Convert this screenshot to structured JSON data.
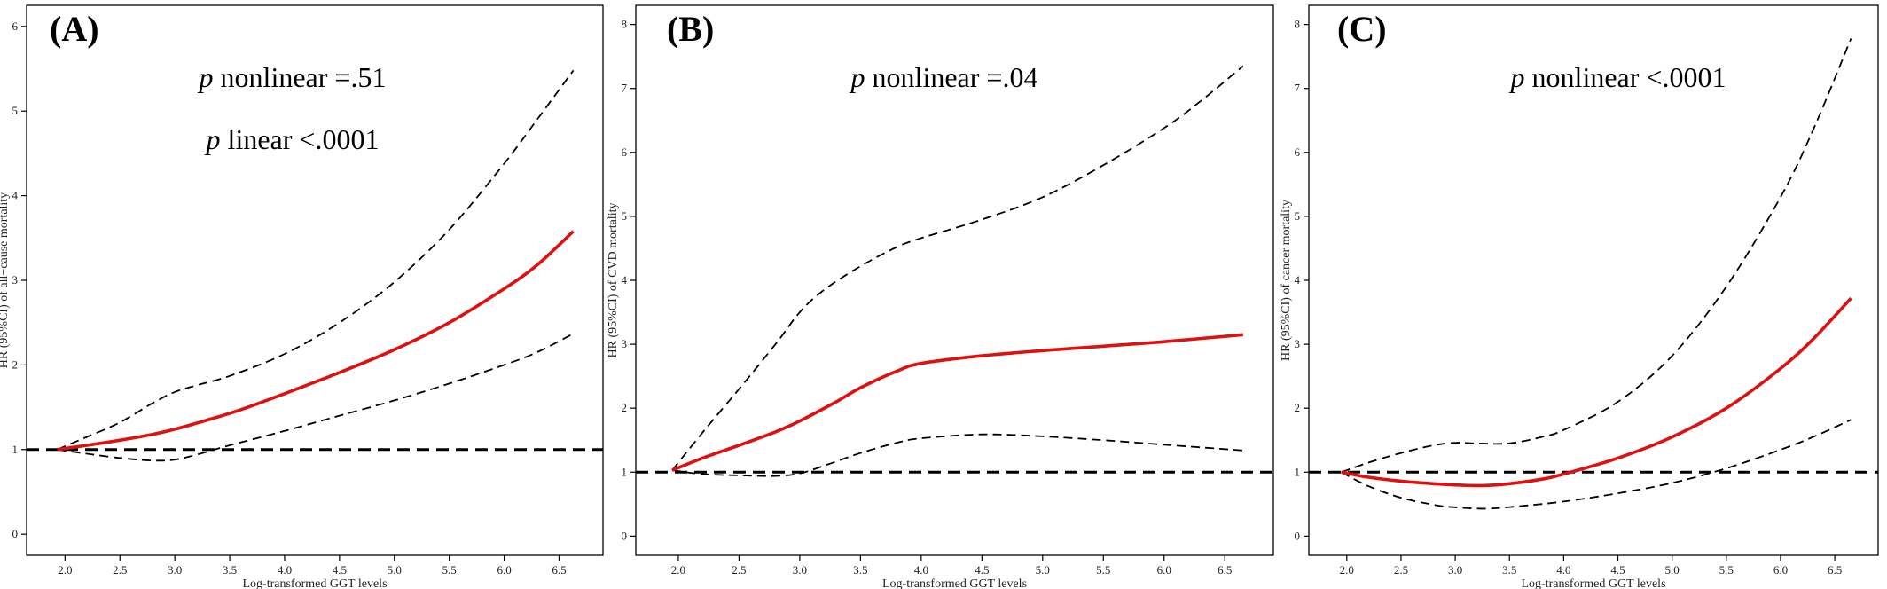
{
  "chart_data": [
    {
      "type": "line",
      "panel_label": "(A)",
      "annotations": [
        {
          "p": "p",
          "text": " nonlinear =.51"
        },
        {
          "p": "p",
          "text": " linear <.0001"
        }
      ],
      "xlabel": "Log-transformed GGT levels",
      "ylabel": "HR (95%CI) of all−cause mortality",
      "xlim": [
        1.65,
        6.9
      ],
      "ylim": [
        -0.25,
        6.25
      ],
      "xticks": [
        "2.0",
        "2.5",
        "3.0",
        "3.5",
        "4.0",
        "4.5",
        "5.0",
        "5.5",
        "6.0",
        "6.5"
      ],
      "yticks": [
        "0",
        "1",
        "2",
        "3",
        "4",
        "5",
        "6"
      ],
      "reference_line": 1,
      "series": [
        {
          "role": "hr",
          "color": "#dd1111",
          "x": [
            1.93,
            2.2,
            2.5,
            2.8,
            3.0,
            3.3,
            3.6,
            4.0,
            4.5,
            5.0,
            5.5,
            6.0,
            6.3,
            6.63
          ],
          "y": [
            1.0,
            1.05,
            1.11,
            1.18,
            1.24,
            1.35,
            1.47,
            1.66,
            1.91,
            2.18,
            2.5,
            2.9,
            3.18,
            3.58
          ]
        },
        {
          "role": "ci_upper",
          "color": "#000000",
          "x": [
            1.93,
            2.2,
            2.5,
            2.8,
            3.0,
            3.2,
            3.5,
            4.0,
            4.5,
            5.0,
            5.5,
            6.0,
            6.3,
            6.63
          ],
          "y": [
            1.0,
            1.15,
            1.32,
            1.55,
            1.68,
            1.76,
            1.87,
            2.13,
            2.5,
            2.98,
            3.6,
            4.38,
            4.9,
            5.48
          ]
        },
        {
          "role": "ci_lower",
          "color": "#000000",
          "x": [
            1.93,
            2.2,
            2.5,
            2.8,
            3.0,
            3.2,
            3.5,
            4.0,
            4.5,
            5.0,
            5.5,
            6.0,
            6.3,
            6.63
          ],
          "y": [
            1.0,
            0.95,
            0.9,
            0.87,
            0.88,
            0.94,
            1.05,
            1.22,
            1.4,
            1.58,
            1.78,
            2.0,
            2.15,
            2.37
          ]
        }
      ]
    },
    {
      "type": "line",
      "panel_label": "(B)",
      "annotations": [
        {
          "p": "p",
          "text": " nonlinear =.04"
        }
      ],
      "xlabel": "Log-transformed GGT levels",
      "ylabel": "HR (95%CI) of CVD mortality",
      "xlim": [
        1.65,
        6.9
      ],
      "ylim": [
        -0.3,
        8.3
      ],
      "xticks": [
        "2.0",
        "2.5",
        "3.0",
        "3.5",
        "4.0",
        "4.5",
        "5.0",
        "5.5",
        "6.0",
        "6.5"
      ],
      "yticks": [
        "0",
        "1",
        "2",
        "3",
        "4",
        "5",
        "6",
        "7",
        "8"
      ],
      "reference_line": 1,
      "series": [
        {
          "role": "hr",
          "color": "#dd1111",
          "x": [
            1.95,
            2.2,
            2.5,
            2.8,
            3.0,
            3.3,
            3.5,
            3.8,
            4.0,
            4.5,
            5.0,
            5.5,
            6.0,
            6.65
          ],
          "y": [
            1.03,
            1.22,
            1.42,
            1.63,
            1.8,
            2.1,
            2.32,
            2.58,
            2.7,
            2.82,
            2.9,
            2.97,
            3.04,
            3.15
          ]
        },
        {
          "role": "ci_upper",
          "color": "#000000",
          "x": [
            1.95,
            2.2,
            2.5,
            2.8,
            3.0,
            3.2,
            3.5,
            3.8,
            4.0,
            4.5,
            5.0,
            5.5,
            6.0,
            6.3,
            6.65
          ],
          "y": [
            1.03,
            1.62,
            2.3,
            3.0,
            3.5,
            3.85,
            4.22,
            4.52,
            4.66,
            4.95,
            5.3,
            5.8,
            6.38,
            6.8,
            7.35
          ]
        },
        {
          "role": "ci_lower",
          "color": "#000000",
          "x": [
            1.95,
            2.2,
            2.5,
            2.8,
            3.0,
            3.2,
            3.5,
            3.8,
            4.0,
            4.5,
            5.0,
            5.5,
            6.0,
            6.65
          ],
          "y": [
            1.03,
            0.97,
            0.95,
            0.94,
            0.98,
            1.1,
            1.3,
            1.46,
            1.53,
            1.59,
            1.56,
            1.5,
            1.43,
            1.34
          ]
        }
      ]
    },
    {
      "type": "line",
      "panel_label": "(C)",
      "annotations": [
        {
          "p": "p",
          "text": " nonlinear <.0001"
        }
      ],
      "xlabel": "Log-transformed GGT levels",
      "ylabel": "HR (95%CI) of cancer mortality",
      "xlim": [
        1.65,
        6.9
      ],
      "ylim": [
        -0.3,
        8.3
      ],
      "xticks": [
        "2.0",
        "2.5",
        "3.0",
        "3.5",
        "4.0",
        "4.5",
        "5.0",
        "5.5",
        "6.0",
        "6.5"
      ],
      "yticks": [
        "0",
        "1",
        "2",
        "3",
        "4",
        "5",
        "6",
        "7",
        "8"
      ],
      "reference_line": 1,
      "series": [
        {
          "role": "hr",
          "color": "#dd1111",
          "x": [
            1.95,
            2.2,
            2.5,
            2.8,
            3.0,
            3.25,
            3.5,
            3.8,
            4.0,
            4.5,
            5.0,
            5.5,
            6.0,
            6.3,
            6.65
          ],
          "y": [
            1.0,
            0.92,
            0.86,
            0.82,
            0.8,
            0.79,
            0.82,
            0.89,
            0.97,
            1.22,
            1.55,
            2.0,
            2.62,
            3.08,
            3.72
          ]
        },
        {
          "role": "ci_upper",
          "color": "#000000",
          "x": [
            1.95,
            2.2,
            2.5,
            2.8,
            3.0,
            3.2,
            3.5,
            3.8,
            4.0,
            4.5,
            5.0,
            5.5,
            6.0,
            6.3,
            6.65
          ],
          "y": [
            1.0,
            1.15,
            1.3,
            1.42,
            1.46,
            1.45,
            1.45,
            1.55,
            1.66,
            2.1,
            2.82,
            3.9,
            5.3,
            6.35,
            7.78
          ]
        },
        {
          "role": "ci_lower",
          "color": "#000000",
          "x": [
            1.95,
            2.2,
            2.5,
            2.8,
            3.0,
            3.3,
            3.6,
            4.0,
            4.5,
            5.0,
            5.5,
            6.0,
            6.3,
            6.65
          ],
          "y": [
            1.0,
            0.78,
            0.6,
            0.49,
            0.45,
            0.43,
            0.47,
            0.54,
            0.67,
            0.83,
            1.06,
            1.35,
            1.55,
            1.82
          ]
        }
      ]
    }
  ]
}
